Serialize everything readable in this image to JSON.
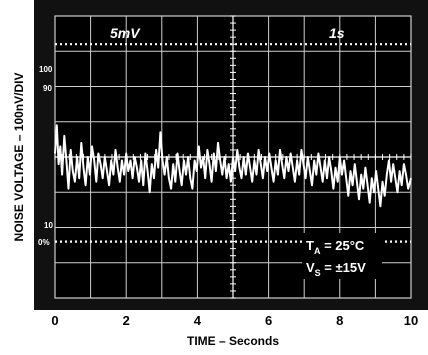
{
  "chart_data": {
    "type": "line",
    "ylabel": "NOISE VOLTAGE – 100nV/DIV",
    "xlabel": "TIME – Seconds",
    "x_ticks": [
      "0",
      "2",
      "4",
      "6",
      "8",
      "10"
    ],
    "xlim": [
      0,
      10
    ],
    "ylim": [
      0,
      8
    ],
    "grid": true,
    "scope_labels": {
      "volts_div": "5mV",
      "time_div": "1s"
    },
    "y_markers": {
      "top_100": "100",
      "top_90": "90",
      "bottom_10": "10",
      "bottom_0": "0%"
    },
    "annotation": {
      "ta_prefix": "T",
      "ta_sub": "A",
      "ta_value": " = 25°C",
      "vs_prefix": "V",
      "vs_sub": "S",
      "vs_value": " = ±15V"
    },
    "colors": {
      "screen": "#000000",
      "trace": "#ffffff",
      "frame": "#111111"
    },
    "series": [
      {
        "values": [
          [
            0.0,
            4.1
          ],
          [
            0.05,
            4.9
          ],
          [
            0.1,
            3.8
          ],
          [
            0.15,
            4.3
          ],
          [
            0.2,
            3.5
          ],
          [
            0.26,
            4.6
          ],
          [
            0.32,
            3.9
          ],
          [
            0.38,
            3.1
          ],
          [
            0.44,
            4.2
          ],
          [
            0.5,
            3.6
          ],
          [
            0.56,
            3.3
          ],
          [
            0.62,
            4.0
          ],
          [
            0.68,
            3.4
          ],
          [
            0.74,
            4.4
          ],
          [
            0.8,
            3.7
          ],
          [
            0.86,
            3.2
          ],
          [
            0.92,
            4.0
          ],
          [
            0.98,
            3.5
          ],
          [
            1.04,
            4.3
          ],
          [
            1.1,
            3.9
          ],
          [
            1.16,
            3.3
          ],
          [
            1.22,
            4.1
          ],
          [
            1.28,
            3.8
          ],
          [
            1.34,
            3.4
          ],
          [
            1.4,
            4.0
          ],
          [
            1.46,
            3.6
          ],
          [
            1.52,
            3.2
          ],
          [
            1.58,
            3.9
          ],
          [
            1.64,
            3.5
          ],
          [
            1.7,
            4.2
          ],
          [
            1.76,
            3.7
          ],
          [
            1.82,
            3.3
          ],
          [
            1.88,
            3.9
          ],
          [
            1.94,
            3.5
          ],
          [
            2.0,
            4.1
          ],
          [
            2.06,
            3.6
          ],
          [
            2.12,
            3.9
          ],
          [
            2.18,
            3.4
          ],
          [
            2.24,
            4.0
          ],
          [
            2.3,
            3.7
          ],
          [
            2.36,
            3.3
          ],
          [
            2.42,
            3.9
          ],
          [
            2.48,
            3.2
          ],
          [
            2.54,
            4.1
          ],
          [
            2.6,
            3.6
          ],
          [
            2.66,
            3.0
          ],
          [
            2.72,
            3.8
          ],
          [
            2.78,
            3.4
          ],
          [
            2.84,
            4.2
          ],
          [
            2.9,
            3.7
          ],
          [
            2.96,
            4.7
          ],
          [
            3.02,
            3.9
          ],
          [
            3.08,
            3.5
          ],
          [
            3.14,
            4.0
          ],
          [
            3.2,
            3.4
          ],
          [
            3.26,
            3.1
          ],
          [
            3.32,
            3.8
          ],
          [
            3.38,
            3.3
          ],
          [
            3.44,
            4.1
          ],
          [
            3.5,
            3.6
          ],
          [
            3.56,
            3.2
          ],
          [
            3.62,
            3.9
          ],
          [
            3.68,
            3.5
          ],
          [
            3.74,
            4.0
          ],
          [
            3.8,
            3.4
          ],
          [
            3.86,
            3.1
          ],
          [
            3.92,
            3.9
          ],
          [
            3.98,
            3.6
          ],
          [
            4.04,
            4.3
          ],
          [
            4.1,
            3.7
          ],
          [
            4.16,
            4.0
          ],
          [
            4.22,
            3.4
          ],
          [
            4.28,
            4.2
          ],
          [
            4.34,
            3.8
          ],
          [
            4.4,
            3.3
          ],
          [
            4.46,
            4.1
          ],
          [
            4.52,
            3.6
          ],
          [
            4.58,
            4.4
          ],
          [
            4.64,
            3.9
          ],
          [
            4.7,
            3.5
          ],
          [
            4.76,
            4.0
          ],
          [
            4.82,
            3.4
          ],
          [
            4.88,
            3.8
          ],
          [
            4.94,
            3.3
          ],
          [
            5.0,
            4.0
          ],
          [
            5.06,
            3.6
          ],
          [
            5.12,
            4.2
          ],
          [
            5.18,
            3.7
          ],
          [
            5.24,
            3.4
          ],
          [
            5.3,
            4.0
          ],
          [
            5.36,
            3.5
          ],
          [
            5.42,
            4.1
          ],
          [
            5.48,
            3.7
          ],
          [
            5.54,
            3.3
          ],
          [
            5.6,
            3.9
          ],
          [
            5.66,
            3.5
          ],
          [
            5.72,
            4.2
          ],
          [
            5.78,
            3.8
          ],
          [
            5.84,
            3.4
          ],
          [
            5.9,
            4.0
          ],
          [
            5.96,
            3.6
          ],
          [
            6.02,
            4.1
          ],
          [
            6.08,
            3.7
          ],
          [
            6.14,
            3.3
          ],
          [
            6.2,
            3.9
          ],
          [
            6.26,
            3.5
          ],
          [
            6.32,
            4.2
          ],
          [
            6.38,
            3.8
          ],
          [
            6.44,
            3.4
          ],
          [
            6.5,
            4.0
          ],
          [
            6.56,
            3.6
          ],
          [
            6.62,
            4.1
          ],
          [
            6.68,
            3.7
          ],
          [
            6.74,
            3.3
          ],
          [
            6.8,
            3.9
          ],
          [
            6.86,
            3.5
          ],
          [
            6.92,
            4.2
          ],
          [
            6.98,
            3.8
          ],
          [
            7.04,
            3.4
          ],
          [
            7.1,
            4.0
          ],
          [
            7.16,
            3.6
          ],
          [
            7.22,
            3.2
          ],
          [
            7.28,
            3.9
          ],
          [
            7.34,
            3.5
          ],
          [
            7.4,
            4.1
          ],
          [
            7.46,
            3.7
          ],
          [
            7.52,
            3.3
          ],
          [
            7.58,
            3.9
          ],
          [
            7.64,
            3.4
          ],
          [
            7.7,
            4.0
          ],
          [
            7.76,
            3.6
          ],
          [
            7.82,
            3.1
          ],
          [
            7.88,
            3.7
          ],
          [
            7.94,
            3.3
          ],
          [
            8.0,
            4.0
          ],
          [
            8.06,
            3.5
          ],
          [
            8.12,
            3.9
          ],
          [
            8.18,
            3.4
          ],
          [
            8.24,
            2.9
          ],
          [
            8.3,
            3.6
          ],
          [
            8.36,
            3.2
          ],
          [
            8.42,
            3.8
          ],
          [
            8.48,
            3.3
          ],
          [
            8.54,
            2.8
          ],
          [
            8.6,
            3.5
          ],
          [
            8.66,
            3.1
          ],
          [
            8.72,
            3.7
          ],
          [
            8.78,
            3.2
          ],
          [
            8.84,
            2.7
          ],
          [
            8.9,
            3.4
          ],
          [
            8.96,
            3.0
          ],
          [
            9.02,
            3.6
          ],
          [
            9.08,
            3.1
          ],
          [
            9.14,
            2.6
          ],
          [
            9.2,
            3.3
          ],
          [
            9.26,
            2.9
          ],
          [
            9.32,
            3.5
          ],
          [
            9.38,
            3.9
          ],
          [
            9.44,
            3.3
          ],
          [
            9.5,
            3.8
          ],
          [
            9.56,
            3.4
          ],
          [
            9.62,
            3.0
          ],
          [
            9.68,
            3.6
          ],
          [
            9.74,
            3.2
          ],
          [
            9.8,
            3.8
          ],
          [
            9.86,
            3.5
          ],
          [
            9.92,
            3.1
          ],
          [
            10.0,
            3.4
          ]
        ]
      }
    ]
  }
}
